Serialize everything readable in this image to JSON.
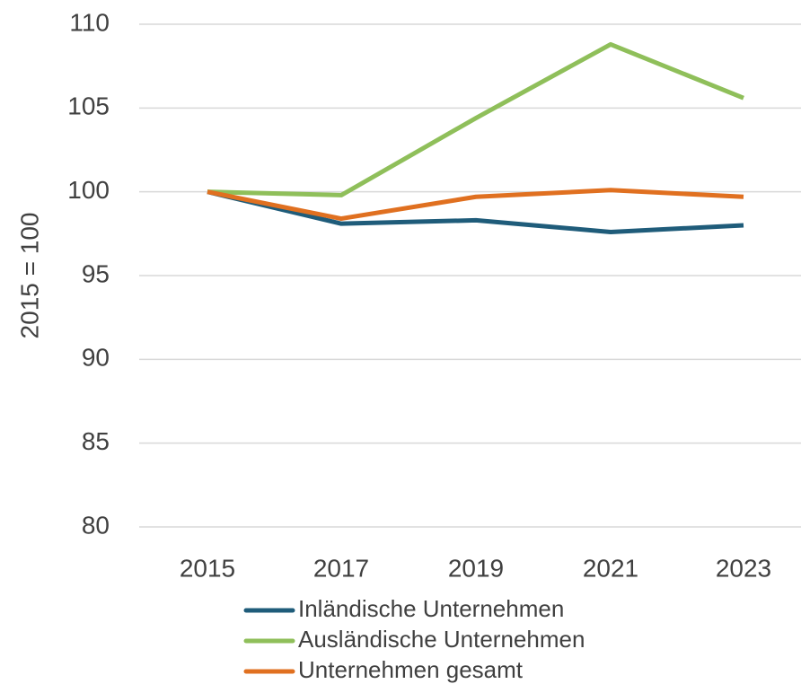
{
  "chart_data": {
    "type": "line",
    "categories": [
      "2015",
      "2017",
      "2019",
      "2021",
      "2023"
    ],
    "y_label": "2015 = 100",
    "series": [
      {
        "name": "Inländische Unternehmen",
        "color": "#1f5c7a",
        "values": [
          100,
          98.1,
          98.3,
          97.6,
          98.0
        ]
      },
      {
        "name": "Ausländische Unternehmen",
        "color": "#8fbf5a",
        "values": [
          100,
          99.8,
          104.4,
          108.8,
          105.6
        ]
      },
      {
        "name": "Unternehmen gesamt",
        "color": "#e07020",
        "values": [
          100,
          98.4,
          99.7,
          100.1,
          99.7
        ]
      }
    ],
    "ylim": [
      80,
      110
    ],
    "yticks": [
      80,
      85,
      90,
      95,
      100,
      105,
      110
    ],
    "grid": true,
    "legend": "bottom"
  }
}
